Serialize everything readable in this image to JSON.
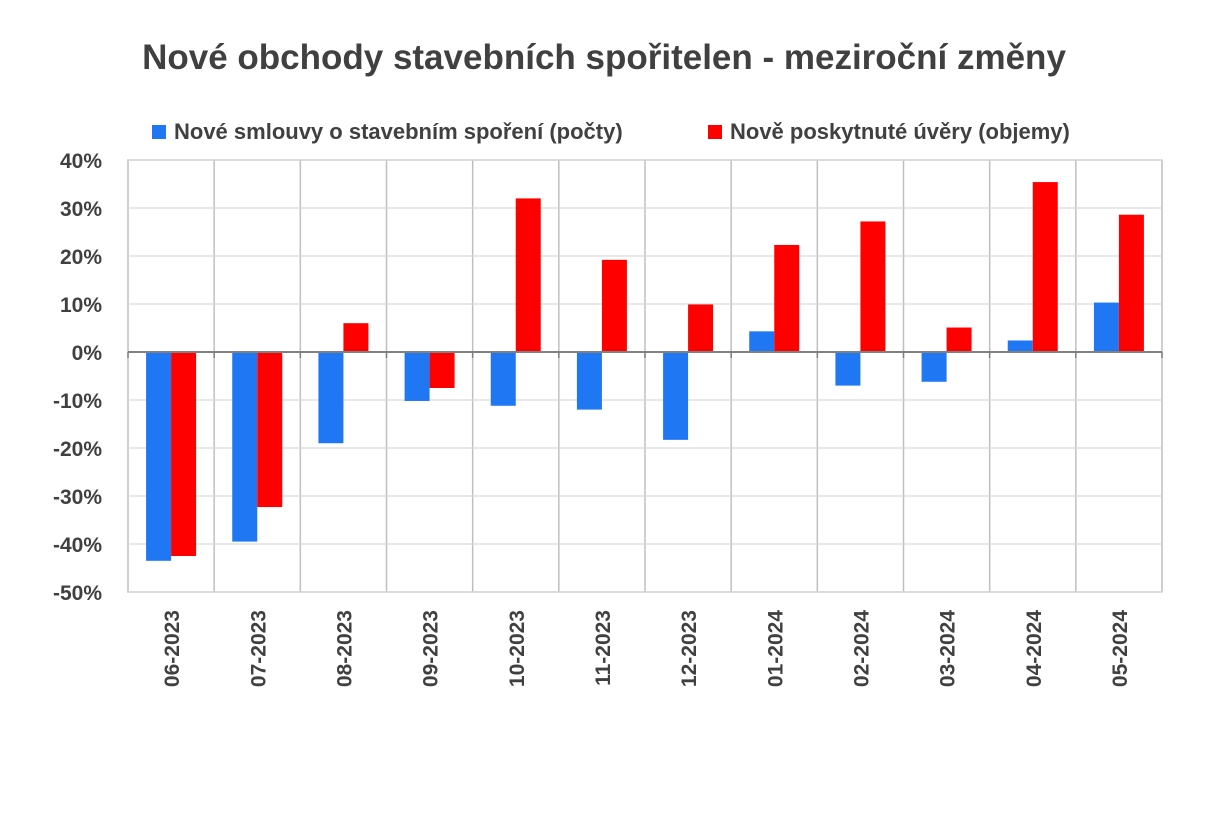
{
  "chart_data": {
    "type": "bar",
    "title": "Nové obchody stavebních spořitelen - meziroční změny",
    "categories": [
      "06-2023",
      "07-2023",
      "08-2023",
      "09-2023",
      "10-2023",
      "11-2023",
      "12-2023",
      "01-2024",
      "02-2024",
      "03-2024",
      "04-2024",
      "05-2024"
    ],
    "series": [
      {
        "name": "Nové smlouvy o stavebním spoření (počty)",
        "color": "#1F77F4",
        "values": [
          -43.5,
          -39.5,
          -19,
          -10.2,
          -11.2,
          -12,
          -18.3,
          4.3,
          -7,
          -6.2,
          2.4,
          10.3
        ]
      },
      {
        "name": "Nově poskytnuté úvěry (objemy)",
        "color": "#FF0000",
        "values": [
          -42.5,
          -32.3,
          6,
          -7.5,
          32,
          19.2,
          9.9,
          22.3,
          27.2,
          5.1,
          35.4,
          28.6
        ]
      }
    ],
    "ylim": [
      -50,
      40
    ],
    "yticks": [
      "-50%",
      "-40%",
      "-30%",
      "-20%",
      "-10%",
      "0%",
      "10%",
      "20%",
      "30%",
      "40%"
    ],
    "ytick_values": [
      -50,
      -40,
      -30,
      -20,
      -10,
      0,
      10,
      20,
      30,
      40
    ],
    "grid": true,
    "legend_position": "top"
  }
}
